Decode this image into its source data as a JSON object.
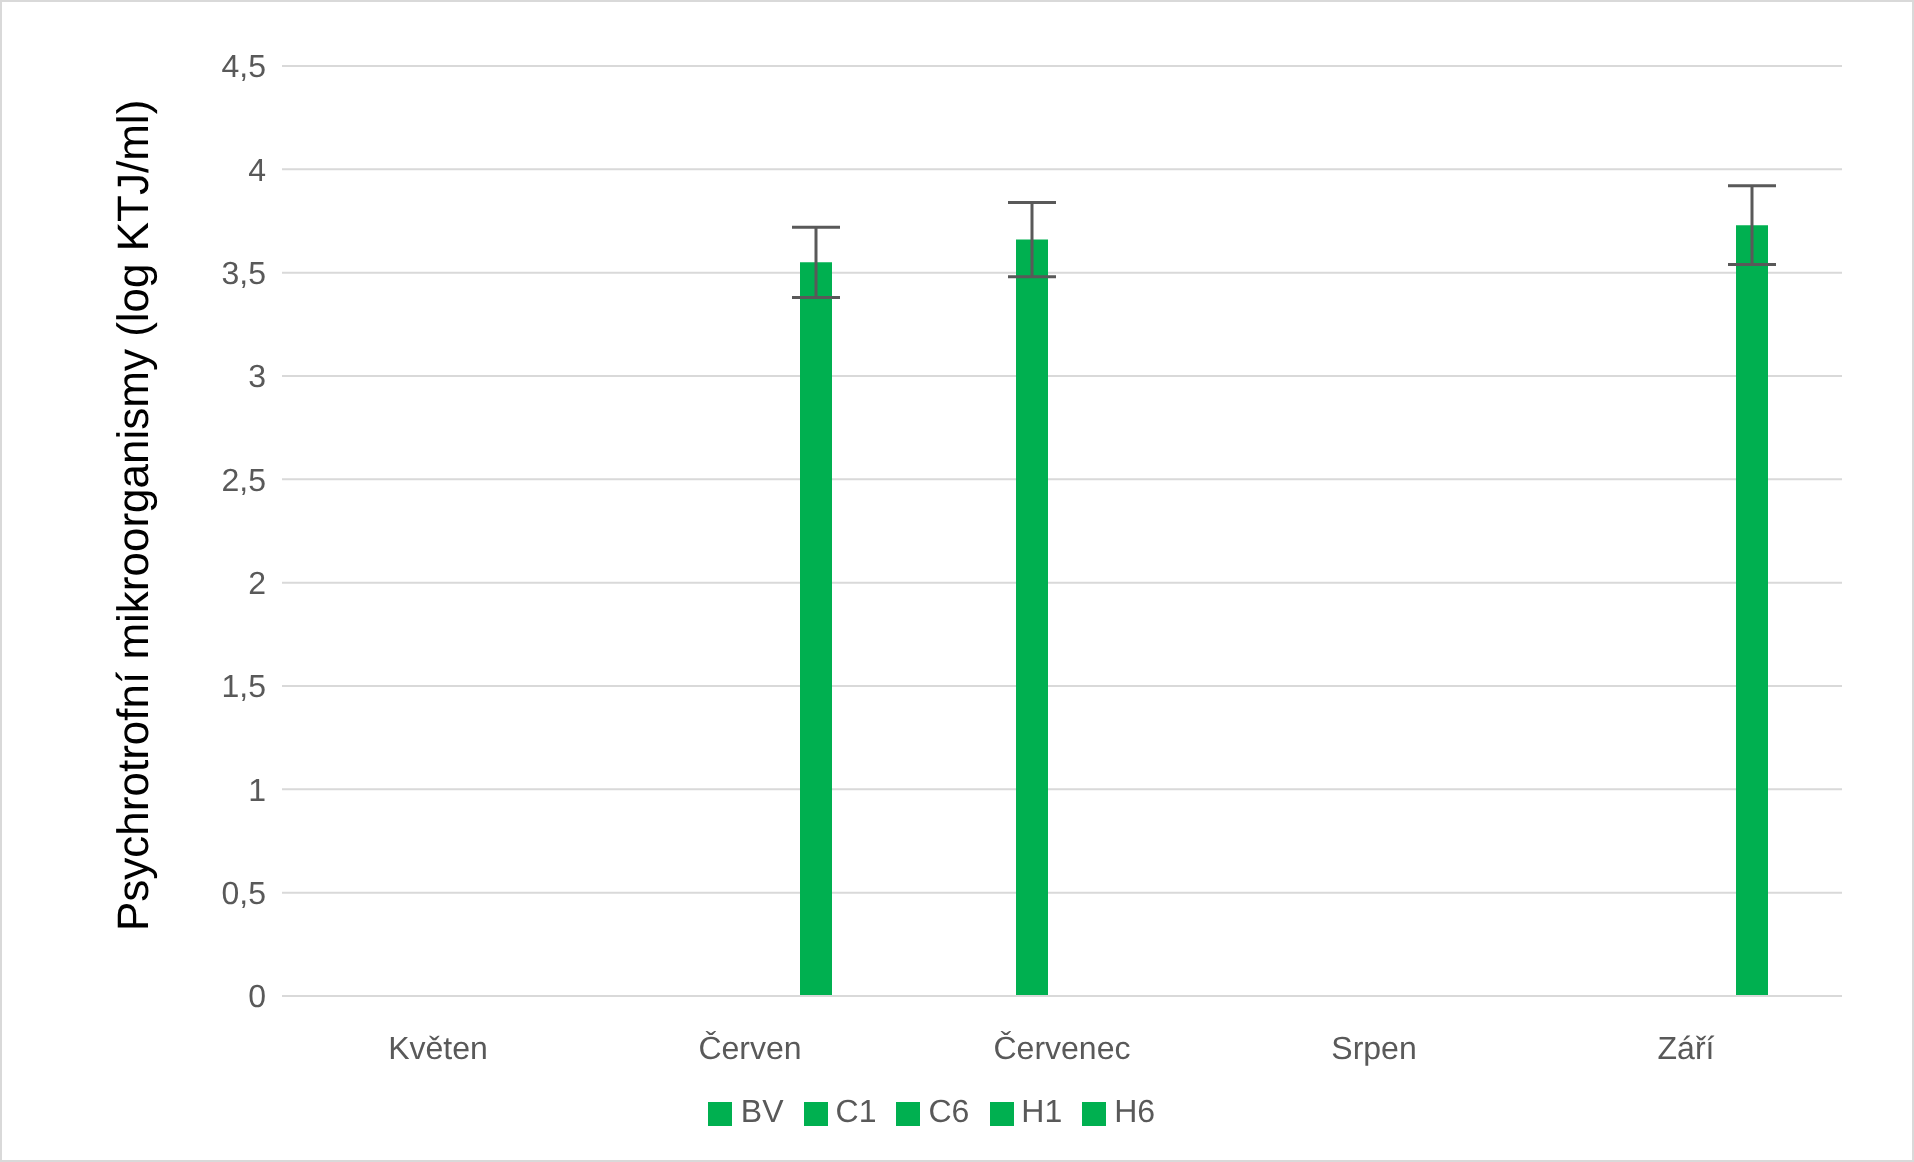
{
  "chart_data": {
    "type": "bar",
    "ylabel": "Psychrotrofní mikroorganismy (log KTJ/ml)",
    "categories": [
      "Květen",
      "Červen",
      "Červenec",
      "Srpen",
      "Září"
    ],
    "series": [
      {
        "name": "C6",
        "color": "#00b050",
        "values": [
          0,
          0,
          0,
          0,
          0
        ]
      },
      {
        "name": "H1",
        "color": "#00b050",
        "values": [
          0,
          0,
          3.66,
          0,
          0
        ],
        "errors": [
          null,
          null,
          0.18,
          null,
          null
        ]
      },
      {
        "name": "C1",
        "color": "#00b050",
        "values": [
          0,
          0,
          0,
          0,
          0
        ]
      },
      {
        "name": "H6",
        "color": "#00b050",
        "values": [
          0,
          0,
          0,
          0,
          0
        ]
      },
      {
        "name": "BV",
        "color": "#00b050",
        "values": [
          0,
          3.55,
          0,
          0,
          3.73
        ],
        "errors": [
          null,
          0.17,
          null,
          null,
          0.19
        ]
      }
    ],
    "ylim": [
      0,
      4.5
    ],
    "yticks": [
      0,
      {
        "value": 0.5,
        "label": "0,5"
      },
      1,
      {
        "value": 1.5,
        "label": "1,5"
      },
      2,
      {
        "value": 2.5,
        "label": "2,5"
      },
      3,
      {
        "value": 3.5,
        "label": "3,5"
      },
      4,
      {
        "value": 4.5,
        "label": "4,5"
      }
    ],
    "grid": "y",
    "legend": "bottom"
  }
}
